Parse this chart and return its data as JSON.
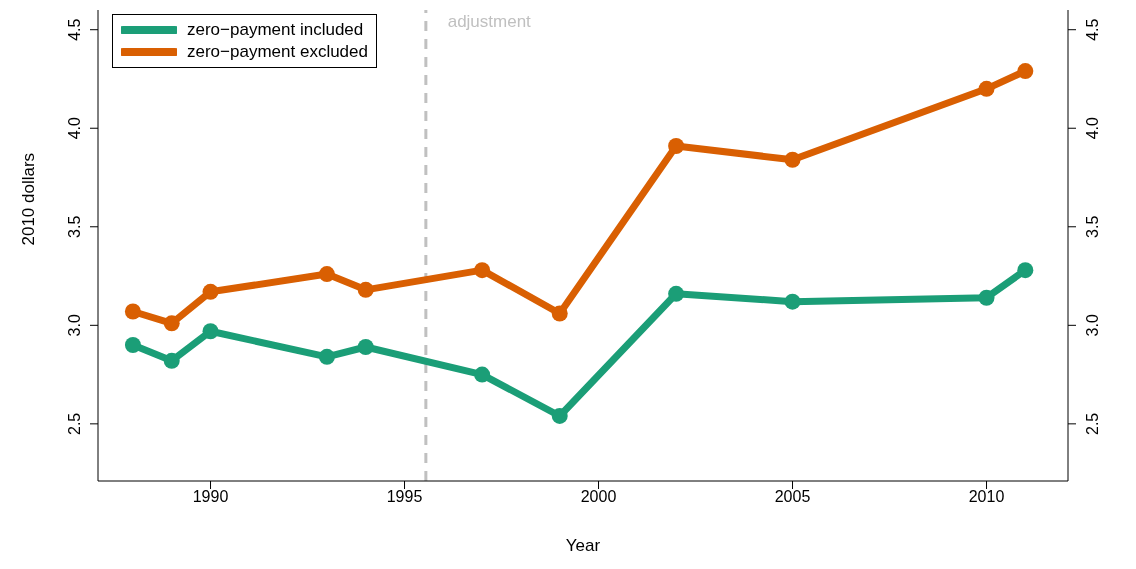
{
  "chart_data": {
    "type": "line",
    "xlabel": "Year",
    "ylabel": "2010 dollars",
    "x": [
      1988,
      1989,
      1990,
      1993,
      1994,
      1997,
      1999,
      2002,
      2005,
      2010,
      2011
    ],
    "series": [
      {
        "name": "zero−payment included",
        "color": "#1b9e77",
        "values": [
          2.9,
          2.82,
          2.97,
          2.84,
          2.89,
          2.75,
          2.54,
          3.16,
          3.12,
          3.14,
          3.28
        ]
      },
      {
        "name": "zero−payment excluded",
        "color": "#d95f02",
        "values": [
          3.07,
          3.01,
          3.17,
          3.26,
          3.18,
          3.28,
          3.06,
          3.91,
          3.84,
          4.2,
          4.29
        ]
      }
    ],
    "xlim": [
      1987.1,
      2012.1
    ],
    "xticks": [
      1990,
      1995,
      2000,
      2005,
      2010
    ],
    "ylim": [
      2.21,
      4.6
    ],
    "yticks": [
      2.5,
      {
        "value": 3,
        "label": "3.0"
      },
      3.5,
      {
        "value": 4,
        "label": "4.0"
      },
      4.5
    ],
    "y2lim": [
      2.21,
      4.6
    ],
    "y2ticks": [
      2.5,
      {
        "value": 3,
        "label": "3.0"
      },
      3.5,
      {
        "value": 4,
        "label": "4.0"
      },
      4.5
    ],
    "ref_lines": [
      {
        "axis": "x",
        "value": 1995.55,
        "label": "adjustment",
        "color": "#c0c0c0",
        "line_style": "dashed"
      }
    ],
    "legend": "top left",
    "grid": false,
    "marker": "circle",
    "line_style": "solid"
  }
}
